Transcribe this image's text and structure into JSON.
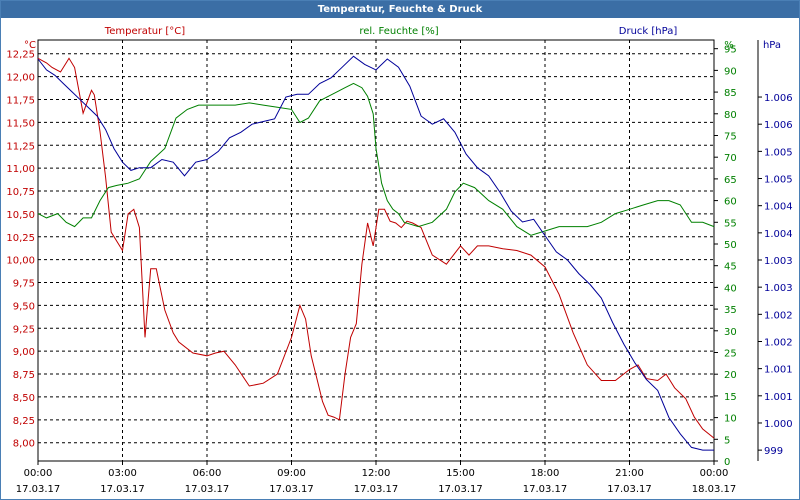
{
  "chart_data": {
    "type": "line",
    "title": "Temperatur, Feuchte & Druck",
    "colors": {
      "temperature": "#c00000",
      "humidity": "#008000",
      "pressure": "#000099"
    },
    "grid": true,
    "x_tick_labels": [
      [
        "00:00",
        "17.03.17"
      ],
      [
        "03:00",
        "17.03.17"
      ],
      [
        "06:00",
        "17.03.17"
      ],
      [
        "09:00",
        "17.03.17"
      ],
      [
        "12:00",
        "17.03.17"
      ],
      [
        "15:00",
        "17.03.17"
      ],
      [
        "18:00",
        "17.03.17"
      ],
      [
        "21:00",
        "17.03.17"
      ],
      [
        "00:00",
        "18.03.17"
      ]
    ],
    "xlim": [
      0,
      24
    ],
    "axes": {
      "temperature": {
        "label": "Temperatur [°C]",
        "unit": "°C",
        "ylim": [
          7.8,
          12.4
        ],
        "ticks": [
          "8,00",
          "8,25",
          "8,50",
          "8,75",
          "9,00",
          "9,25",
          "9,50",
          "9,75",
          "10,00",
          "10,25",
          "10,50",
          "10,75",
          "11,00",
          "11,25",
          "11,50",
          "11,75",
          "12,00",
          "12,25"
        ],
        "tick_values": [
          8.0,
          8.25,
          8.5,
          8.75,
          9.0,
          9.25,
          9.5,
          9.75,
          10.0,
          10.25,
          10.5,
          10.75,
          11.0,
          11.25,
          11.5,
          11.75,
          12.0,
          12.25
        ]
      },
      "humidity": {
        "label": "rel. Feuchte [%]",
        "unit": "%",
        "ylim": [
          0,
          97
        ],
        "ticks": [
          "0",
          "5",
          "10",
          "15",
          "20",
          "25",
          "30",
          "35",
          "40",
          "45",
          "50",
          "55",
          "60",
          "65",
          "70",
          "75",
          "80",
          "85",
          "90",
          "95"
        ],
        "tick_values": [
          0,
          5,
          10,
          15,
          20,
          25,
          30,
          35,
          40,
          45,
          50,
          55,
          60,
          65,
          70,
          75,
          80,
          85,
          90,
          95
        ]
      },
      "pressure": {
        "label": "Druck [hPa]",
        "unit": "hPa",
        "ylim": [
          998.8,
          1006.55
        ],
        "ticks": [
          "999",
          "1.000",
          "1.001",
          "1.001",
          "1.002",
          "1.002",
          "1.003",
          "1.003",
          "1.004",
          "1.004",
          "1.005",
          "1.005",
          "1.006",
          "1.006"
        ],
        "tick_values": [
          999.0,
          999.5,
          1000.0,
          1000.5,
          1001.0,
          1001.5,
          1002.0,
          1002.5,
          1003.0,
          1003.5,
          1004.0,
          1004.5,
          1005.0,
          1005.5
        ]
      }
    },
    "series": [
      {
        "name": "Temperatur [°C]",
        "axis": "temperature",
        "x": [
          0,
          0.3,
          0.5,
          0.8,
          1.0,
          1.1,
          1.3,
          1.6,
          1.9,
          2.0,
          2.2,
          2.4,
          2.6,
          3.0,
          3.2,
          3.4,
          3.6,
          3.8,
          4.0,
          4.2,
          4.5,
          4.8,
          5.0,
          5.5,
          6.0,
          6.3,
          6.6,
          7.0,
          7.5,
          8.0,
          8.5,
          9.0,
          9.3,
          9.5,
          9.7,
          9.9,
          10.1,
          10.3,
          10.5,
          10.7,
          10.9,
          11.1,
          11.3,
          11.5,
          11.7,
          11.9,
          12.1,
          12.3,
          12.5,
          12.7,
          12.9,
          13.1,
          13.3,
          13.6,
          14.0,
          14.5,
          15.0,
          15.3,
          15.6,
          16.0,
          16.5,
          17.0,
          17.5,
          18.0,
          18.5,
          19.0,
          19.5,
          20.0,
          20.5,
          21.0,
          21.3,
          21.6,
          22.0,
          22.3,
          22.6,
          23.0,
          23.3,
          23.6,
          24.0
        ],
        "values": [
          12.2,
          12.15,
          12.1,
          12.05,
          12.15,
          12.2,
          12.1,
          11.6,
          11.85,
          11.8,
          11.4,
          10.9,
          10.3,
          10.1,
          10.5,
          10.55,
          10.35,
          9.15,
          9.9,
          9.9,
          9.45,
          9.2,
          9.1,
          8.98,
          8.95,
          8.98,
          9.0,
          8.85,
          8.62,
          8.65,
          8.75,
          9.15,
          9.5,
          9.35,
          8.95,
          8.7,
          8.45,
          8.3,
          8.28,
          8.25,
          8.75,
          9.15,
          9.3,
          9.95,
          10.4,
          10.15,
          10.55,
          10.55,
          10.42,
          10.4,
          10.35,
          10.42,
          10.4,
          10.35,
          10.05,
          9.95,
          10.15,
          10.05,
          10.15,
          10.15,
          10.12,
          10.1,
          10.05,
          9.92,
          9.62,
          9.2,
          8.85,
          8.68,
          8.68,
          8.8,
          8.85,
          8.7,
          8.68,
          8.75,
          8.6,
          8.48,
          8.28,
          8.15,
          8.05
        ]
      },
      {
        "name": "rel. Feuchte [%]",
        "axis": "humidity",
        "x": [
          0,
          0.3,
          0.7,
          1.0,
          1.3,
          1.6,
          1.9,
          2.2,
          2.5,
          2.8,
          3.2,
          3.6,
          4.0,
          4.5,
          4.9,
          5.3,
          5.7,
          6.0,
          6.5,
          7.0,
          7.5,
          8.0,
          8.5,
          9.0,
          9.3,
          9.6,
          10.0,
          10.3,
          10.6,
          10.9,
          11.2,
          11.5,
          11.7,
          11.9,
          12.0,
          12.2,
          12.4,
          12.6,
          12.8,
          13.0,
          13.5,
          14.0,
          14.5,
          14.8,
          15.1,
          15.5,
          16.0,
          16.5,
          17.0,
          17.5,
          18.0,
          18.5,
          19.0,
          19.5,
          20.0,
          20.5,
          21.0,
          21.5,
          22.0,
          22.4,
          22.8,
          23.2,
          23.6,
          24.0
        ],
        "values": [
          57,
          56,
          57,
          55,
          54,
          56,
          56,
          60,
          63,
          63.5,
          64,
          65,
          69,
          72,
          79,
          81,
          82,
          82,
          82,
          82,
          82.5,
          82,
          81.5,
          81,
          78,
          79,
          83,
          84,
          85,
          86,
          87,
          86,
          84,
          80,
          72,
          64,
          60,
          58,
          57,
          55,
          54,
          55,
          58,
          62,
          64,
          63,
          60,
          58,
          54,
          52,
          53,
          54,
          54,
          54,
          55,
          57,
          58,
          59,
          60,
          60,
          59,
          55,
          55,
          54
        ]
      },
      {
        "name": "Druck [hPa]",
        "axis": "pressure",
        "x": [
          0,
          0.3,
          0.6,
          0.9,
          1.2,
          1.5,
          1.8,
          2.1,
          2.4,
          2.7,
          3.0,
          3.3,
          3.6,
          4.0,
          4.4,
          4.8,
          5.2,
          5.6,
          6.0,
          6.4,
          6.8,
          7.2,
          7.6,
          8.0,
          8.4,
          8.8,
          9.2,
          9.6,
          10.0,
          10.4,
          10.8,
          11.2,
          11.6,
          12.0,
          12.4,
          12.8,
          13.2,
          13.6,
          14.0,
          14.4,
          14.8,
          15.2,
          15.6,
          16.0,
          16.4,
          16.8,
          17.2,
          17.6,
          18.0,
          18.4,
          18.8,
          19.2,
          19.6,
          20.0,
          20.4,
          20.8,
          21.2,
          21.6,
          22.0,
          22.4,
          22.8,
          23.2,
          23.6,
          24.0
        ],
        "values": [
          1006.2,
          1006.0,
          1005.9,
          1005.75,
          1005.6,
          1005.45,
          1005.3,
          1005.15,
          1004.9,
          1004.55,
          1004.3,
          1004.15,
          1004.2,
          1004.2,
          1004.35,
          1004.3,
          1004.05,
          1004.3,
          1004.35,
          1004.5,
          1004.75,
          1004.85,
          1005.0,
          1005.05,
          1005.1,
          1005.5,
          1005.55,
          1005.55,
          1005.75,
          1005.85,
          1006.05,
          1006.25,
          1006.1,
          1006.0,
          1006.2,
          1006.05,
          1005.7,
          1005.15,
          1005.0,
          1005.1,
          1004.85,
          1004.45,
          1004.2,
          1004.05,
          1003.75,
          1003.4,
          1003.2,
          1003.25,
          1002.95,
          1002.65,
          1002.5,
          1002.25,
          1002.05,
          1001.8,
          1001.35,
          1000.95,
          1000.6,
          1000.3,
          1000.1,
          999.6,
          999.3,
          999.05,
          999.0,
          999.0
        ]
      }
    ]
  }
}
